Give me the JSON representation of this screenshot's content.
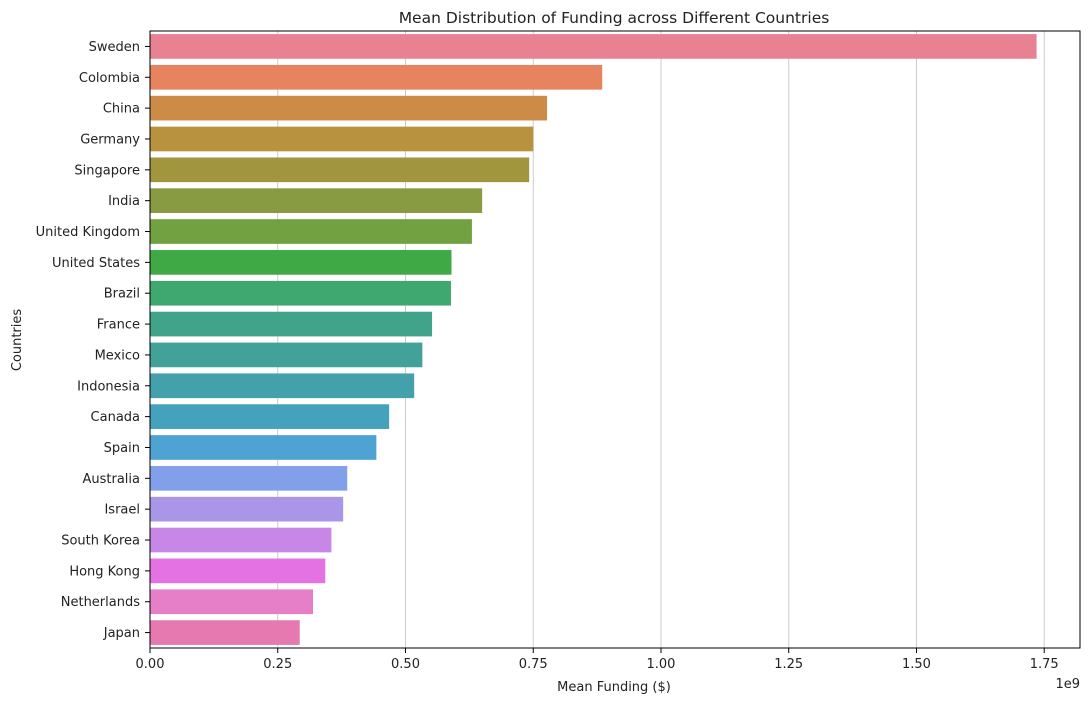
{
  "chart_data": {
    "type": "bar",
    "orientation": "horizontal",
    "title": "Mean Distribution of Funding across Different Countries",
    "xlabel": "Mean Funding ($)",
    "ylabel": "Countries",
    "x_scale_label": "1e9",
    "xlim": [
      0,
      1.82
    ],
    "xticks": [
      0,
      0.25,
      0.5,
      0.75,
      1.0,
      1.25,
      1.5,
      1.75
    ],
    "xtick_labels": [
      "0.00",
      "0.25",
      "0.50",
      "0.75",
      "1.00",
      "1.25",
      "1.50",
      "1.75"
    ],
    "grid": "x",
    "categories": [
      "Sweden",
      "Colombia",
      "China",
      "Germany",
      "Singapore",
      "India",
      "United Kingdom",
      "United States",
      "Brazil",
      "France",
      "Mexico",
      "Indonesia",
      "Canada",
      "Spain",
      "Australia",
      "Israel",
      "South Korea",
      "Hong Kong",
      "Netherlands",
      "Japan"
    ],
    "values": [
      1.735,
      0.885,
      0.777,
      0.75,
      0.742,
      0.65,
      0.63,
      0.59,
      0.589,
      0.552,
      0.533,
      0.517,
      0.468,
      0.443,
      0.386,
      0.378,
      0.355,
      0.343,
      0.319,
      0.293
    ],
    "colors": [
      "#e88292",
      "#e8835f",
      "#cc8c48",
      "#b9923f",
      "#a1953e",
      "#889a42",
      "#72a142",
      "#3fa946",
      "#3ea86f",
      "#41a38a",
      "#42a198",
      "#44a0aa",
      "#45a2bc",
      "#4ea3d2",
      "#82a0e9",
      "#aa96e8",
      "#c887e7",
      "#e472e3",
      "#e67fc8",
      "#e67ab0"
    ]
  }
}
